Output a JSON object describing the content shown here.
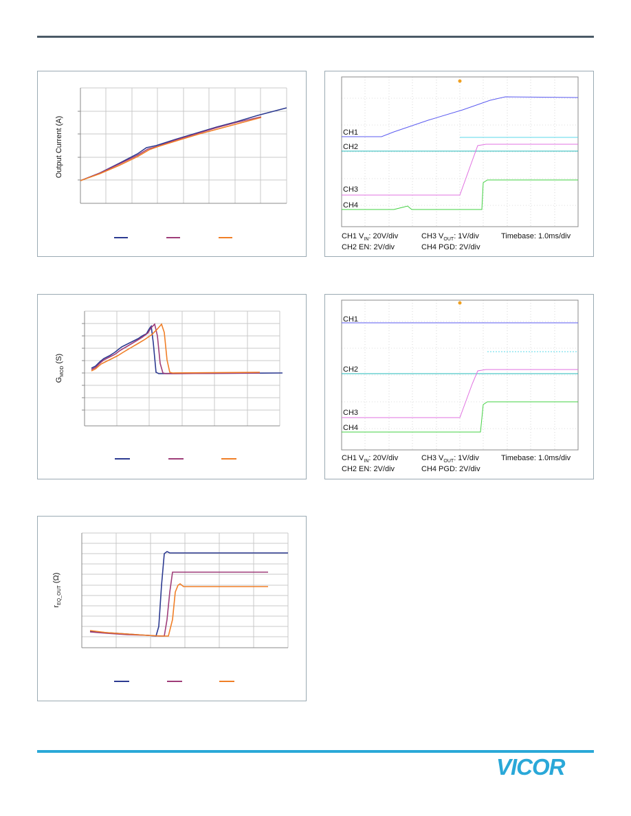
{
  "header": {
    "rule_color": "#4a5a66"
  },
  "footer": {
    "rule_color": "#2aa8d8",
    "logo_text": "VICOR",
    "logo_color": "#2aa8d8"
  },
  "figures": {
    "output_current": {
      "ylabel": "Output Current (A)",
      "legend_colors": [
        "#2b3990",
        "#9e3c78",
        "#f07e26"
      ]
    },
    "gmod": {
      "ylabel_main": "G",
      "ylabel_sub": "MOD",
      "ylabel_unit": " (S)",
      "legend_colors": [
        "#2b3990",
        "#9e3c78",
        "#f07e26"
      ]
    },
    "req_out": {
      "ylabel_main": "r",
      "ylabel_sub": "EQ_OUT",
      "ylabel_unit": " (Ω)",
      "legend_colors": [
        "#2b3990",
        "#9e3c78",
        "#f07e26"
      ]
    },
    "scope1": {
      "channels": [
        "CH1",
        "CH2",
        "CH3",
        "CH4"
      ],
      "caption": {
        "ch1_pre": "CH1 V",
        "ch1_sub": "IN",
        "ch1_post": ": 20V/div",
        "ch3_pre": "CH3 V",
        "ch3_sub": "OUT",
        "ch3_post": ": 1V/div",
        "timebase": "Timebase: 1.0ms/div",
        "ch2": "CH2 EN: 2V/div",
        "ch4": "CH4 PGD: 2V/div"
      },
      "colors": {
        "ch1": "#5a5af0",
        "ch2": "#1fb8b8",
        "ch3": "#e070e0",
        "ch4": "#40d040"
      }
    },
    "scope2": {
      "channels": [
        "CH1",
        "CH2",
        "CH3",
        "CH4"
      ],
      "caption": {
        "ch1_pre": "CH1 V",
        "ch1_sub": "IN",
        "ch1_post": ": 20V/div",
        "ch3_pre": "CH3 V",
        "ch3_sub": "OUT",
        "ch3_post": ": 1V/div",
        "timebase": "Timebase: 1.0ms/div",
        "ch2": "CH2 EN: 2V/div",
        "ch4": "CH4 PGD: 2V/div"
      },
      "colors": {
        "ch1": "#5a5af0",
        "ch2": "#1fb8b8",
        "ch3": "#e070e0",
        "ch4": "#40d040"
      }
    }
  }
}
